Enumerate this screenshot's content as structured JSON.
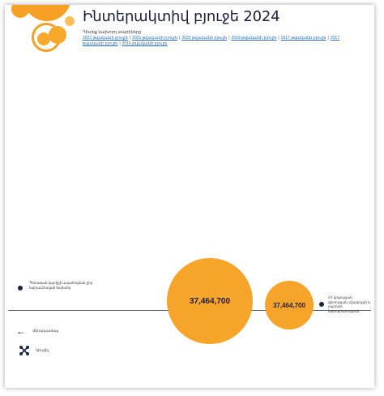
{
  "header": {
    "title": "Ինտերակտիվ բյուջե 2024",
    "subtitle": "Դիտեք նախորդ տարիները",
    "year_links": [
      "2022 թվականի բյուջե",
      "2021 թվականի բյուջե",
      "2020 թվականի բյուջե",
      "2019 թվականի բյուջե",
      "2017 թվականի բյուջե",
      "2017 թվականի բյուջե",
      "2016 թվականի բյուջե"
    ]
  },
  "chart": {
    "left_label": "Պետական կարիքի ապահովման ընդ նախատեսված ծախսեր",
    "right_label": "ՀՀ կրթության, գիտության, մշակույթի և սպորտի նախարարություն",
    "bubbles": [
      {
        "value": "37,464,700"
      },
      {
        "value": "37,464,700"
      }
    ],
    "colors": {
      "bubble": "#f7a42a",
      "dot": "#1e2540",
      "axis": "#555555"
    }
  },
  "nav": {
    "back_label": "Վերադառնալ",
    "share_label": "Կիսվել"
  },
  "icons": {
    "back": "arrow-left-icon",
    "share": "share-icon",
    "logo": "budget-bubbles-logo"
  }
}
